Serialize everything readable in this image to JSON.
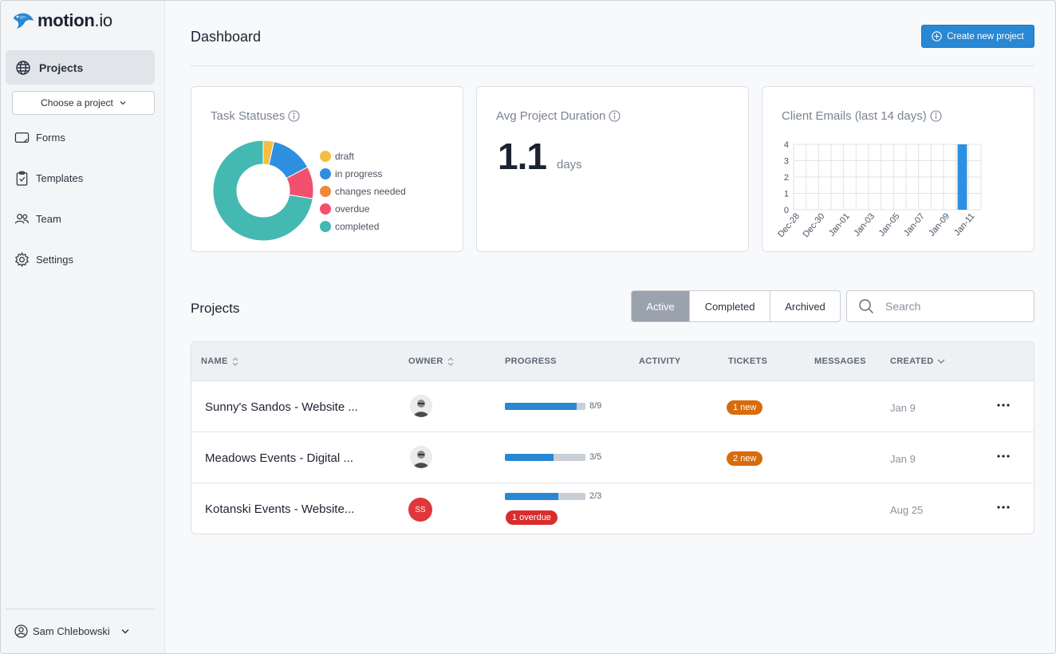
{
  "brand": {
    "name_main": "motion",
    "name_suffix": ".io"
  },
  "sidebar": {
    "active_item": "Projects",
    "project_picker": "Choose a project",
    "items": [
      {
        "label": "Forms",
        "icon": "form-icon"
      },
      {
        "label": "Templates",
        "icon": "clipboard-icon"
      },
      {
        "label": "Team",
        "icon": "team-icon"
      },
      {
        "label": "Settings",
        "icon": "gear-icon"
      }
    ],
    "user": "Sam Chlebowski"
  },
  "header": {
    "title": "Dashboard",
    "create_label": "Create new project"
  },
  "cards": {
    "task_statuses": {
      "title": "Task Statuses",
      "legend": [
        {
          "label": "draft",
          "color": "#f5bd41"
        },
        {
          "label": "in progress",
          "color": "#2e8fe0"
        },
        {
          "label": "changes needed",
          "color": "#f2873a"
        },
        {
          "label": "overdue",
          "color": "#f2506f"
        },
        {
          "label": "completed",
          "color": "#44b9b2"
        }
      ]
    },
    "avg_duration": {
      "title": "Avg Project Duration",
      "value": "1.1",
      "unit": "days"
    },
    "client_emails": {
      "title": "Client Emails (last 14 days)"
    }
  },
  "chart_data": [
    {
      "type": "pie",
      "title": "Task Statuses",
      "categories": [
        "draft",
        "in progress",
        "changes needed",
        "overdue",
        "completed"
      ],
      "values": [
        1,
        4,
        0,
        3,
        21
      ],
      "colors": [
        "#f5bd41",
        "#2e8fe0",
        "#f2873a",
        "#f2506f",
        "#44b9b2"
      ]
    },
    {
      "type": "bar",
      "title": "Client Emails (last 14 days)",
      "categories": [
        "Dec-28",
        "Dec-29",
        "Dec-30",
        "Dec-31",
        "Jan-01",
        "Jan-02",
        "Jan-03",
        "Jan-04",
        "Jan-05",
        "Jan-06",
        "Jan-07",
        "Jan-08",
        "Jan-09",
        "Jan-10",
        "Jan-11"
      ],
      "tick_labels": [
        "Dec-28",
        "Dec-30",
        "Jan-01",
        "Jan-03",
        "Jan-05",
        "Jan-07",
        "Jan-09",
        "Jan-11"
      ],
      "values": [
        0,
        0,
        0,
        0,
        0,
        0,
        0,
        0,
        0,
        0,
        0,
        0,
        0,
        4,
        0
      ],
      "yticks": [
        0,
        1,
        2,
        3,
        4
      ],
      "ylim": [
        0,
        4
      ],
      "color": "#2e8fe0",
      "grid": true
    }
  ],
  "projects": {
    "title": "Projects",
    "filters": [
      "Active",
      "Completed",
      "Archived"
    ],
    "active_filter": "Active",
    "search_placeholder": "Search",
    "columns": [
      "NAME",
      "OWNER",
      "PROGRESS",
      "ACTIVITY",
      "TICKETS",
      "MESSAGES",
      "CREATED"
    ],
    "rows": [
      {
        "name": "Sunny's Sandos - Website ...",
        "owner": "",
        "progress_text": "8/9",
        "progress": 0.889,
        "tickets": "1 new",
        "overdue": "",
        "created": "Jan 9"
      },
      {
        "name": "Meadows Events - Digital ...",
        "owner": "",
        "progress_text": "3/5",
        "progress": 0.6,
        "tickets": "2 new",
        "overdue": "",
        "created": "Jan 9"
      },
      {
        "name": "Kotanski Events - Website...",
        "owner": "SS",
        "progress_text": "2/3",
        "progress": 0.667,
        "tickets": "",
        "overdue": "1 overdue",
        "created": "Aug 25"
      }
    ]
  }
}
